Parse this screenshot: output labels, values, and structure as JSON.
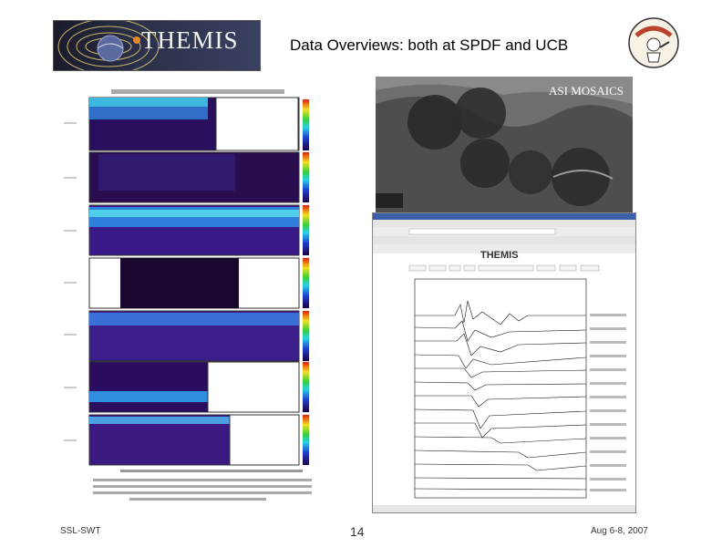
{
  "header": {
    "banner_text": "THEMIS",
    "title": "Data Overviews: both at SPDF and UCB"
  },
  "mosaic": {
    "label": "ASI MOSAICS"
  },
  "browser": {
    "app_logo": "THEMIS"
  },
  "footer": {
    "left": "SSL-SWT",
    "page_number": "14",
    "right": "Aug 6-8, 2007"
  },
  "icons": [
    "themis-logo-icon",
    "mascot-icon"
  ]
}
